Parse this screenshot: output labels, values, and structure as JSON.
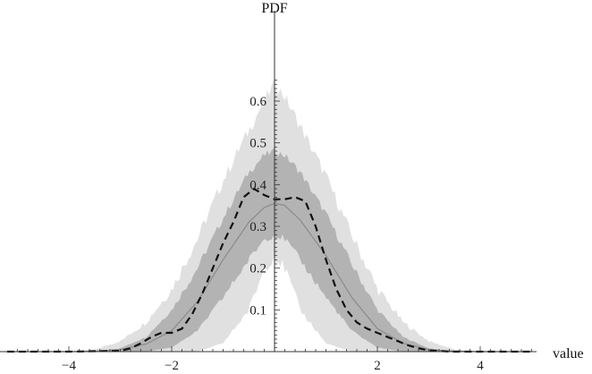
{
  "chart_data": {
    "type": "area",
    "title": "",
    "xlabel": "value",
    "ylabel": "PDF",
    "xlim": [
      -5.2,
      5.0
    ],
    "ylim": [
      0,
      0.66
    ],
    "x_ticks": [
      -4,
      -2,
      2,
      4
    ],
    "x_tick_labels": [
      "−4",
      "−2",
      "2",
      "4"
    ],
    "y_ticks": [
      0.1,
      0.2,
      0.3,
      0.4,
      0.5,
      0.6
    ],
    "y_tick_labels": [
      "0.1",
      "0.2",
      "0.3",
      "0.4",
      "0.5",
      "0.6"
    ],
    "grid": false,
    "legend": "none",
    "colors": {
      "outer_band": "#e0e0e0",
      "inner_band": "#b3b3b3",
      "center_line": "#8a8a8a",
      "dashed_line": "#111111",
      "axis": "#333333"
    },
    "series": [
      {
        "style": "outer-band",
        "x": [
          -5.2,
          -4.0,
          -3.5,
          -3.0,
          -2.5,
          -2.0,
          -1.5,
          -1.0,
          -0.5,
          -0.2,
          0.0,
          0.2,
          0.5,
          1.0,
          1.5,
          2.0,
          2.5,
          3.0,
          3.5,
          4.0,
          5.0
        ],
        "upper": [
          0,
          0,
          0.005,
          0.025,
          0.07,
          0.15,
          0.27,
          0.41,
          0.53,
          0.6,
          0.64,
          0.61,
          0.54,
          0.42,
          0.28,
          0.15,
          0.07,
          0.025,
          0.005,
          0,
          0
        ],
        "lower": [
          0,
          0,
          0,
          0,
          0,
          0,
          0,
          0.02,
          0.1,
          0.2,
          0.23,
          0.2,
          0.1,
          0.02,
          0,
          0,
          0,
          0,
          0,
          0,
          0
        ]
      },
      {
        "style": "inner-band",
        "x": [
          -5.2,
          -4.0,
          -3.5,
          -3.0,
          -2.5,
          -2.0,
          -1.5,
          -1.0,
          -0.5,
          -0.2,
          0.0,
          0.2,
          0.5,
          1.0,
          1.5,
          2.0,
          2.5,
          3.0,
          3.5,
          4.0,
          5.0
        ],
        "upper": [
          0,
          0,
          0,
          0.008,
          0.035,
          0.1,
          0.2,
          0.32,
          0.43,
          0.47,
          0.48,
          0.47,
          0.43,
          0.33,
          0.21,
          0.1,
          0.035,
          0.008,
          0,
          0,
          0
        ],
        "lower": [
          0,
          0,
          0,
          0,
          0,
          0.01,
          0.05,
          0.13,
          0.22,
          0.27,
          0.28,
          0.27,
          0.22,
          0.13,
          0.05,
          0.01,
          0,
          0,
          0,
          0,
          0
        ]
      },
      {
        "style": "center-line",
        "x": [
          -5.2,
          -4.0,
          -3.5,
          -3.0,
          -2.5,
          -2.0,
          -1.5,
          -1.0,
          -0.5,
          -0.2,
          0.0,
          0.2,
          0.5,
          1.0,
          1.5,
          2.0,
          2.5,
          3.0,
          3.5,
          4.0,
          5.0
        ],
        "y": [
          0,
          0,
          0.001,
          0.005,
          0.018,
          0.05,
          0.12,
          0.22,
          0.31,
          0.345,
          0.355,
          0.35,
          0.315,
          0.23,
          0.13,
          0.055,
          0.02,
          0.005,
          0.001,
          0,
          0
        ]
      },
      {
        "style": "dashed-line",
        "x": [
          -5.2,
          -4.0,
          -3.0,
          -2.8,
          -2.6,
          -2.4,
          -2.2,
          -2.0,
          -1.8,
          -1.6,
          -1.4,
          -1.2,
          -1.0,
          -0.8,
          -0.6,
          -0.4,
          -0.2,
          0.0,
          0.2,
          0.4,
          0.6,
          0.8,
          1.0,
          1.2,
          1.4,
          1.6,
          1.8,
          2.0,
          2.2,
          2.4,
          2.6,
          2.8,
          3.0,
          3.4,
          4.0,
          5.0
        ],
        "y": [
          0,
          0,
          0.002,
          0.008,
          0.02,
          0.035,
          0.045,
          0.045,
          0.055,
          0.09,
          0.14,
          0.2,
          0.26,
          0.31,
          0.37,
          0.39,
          0.375,
          0.365,
          0.365,
          0.37,
          0.36,
          0.3,
          0.22,
          0.15,
          0.1,
          0.07,
          0.055,
          0.045,
          0.035,
          0.025,
          0.015,
          0.008,
          0.003,
          0,
          0,
          0
        ]
      }
    ]
  }
}
